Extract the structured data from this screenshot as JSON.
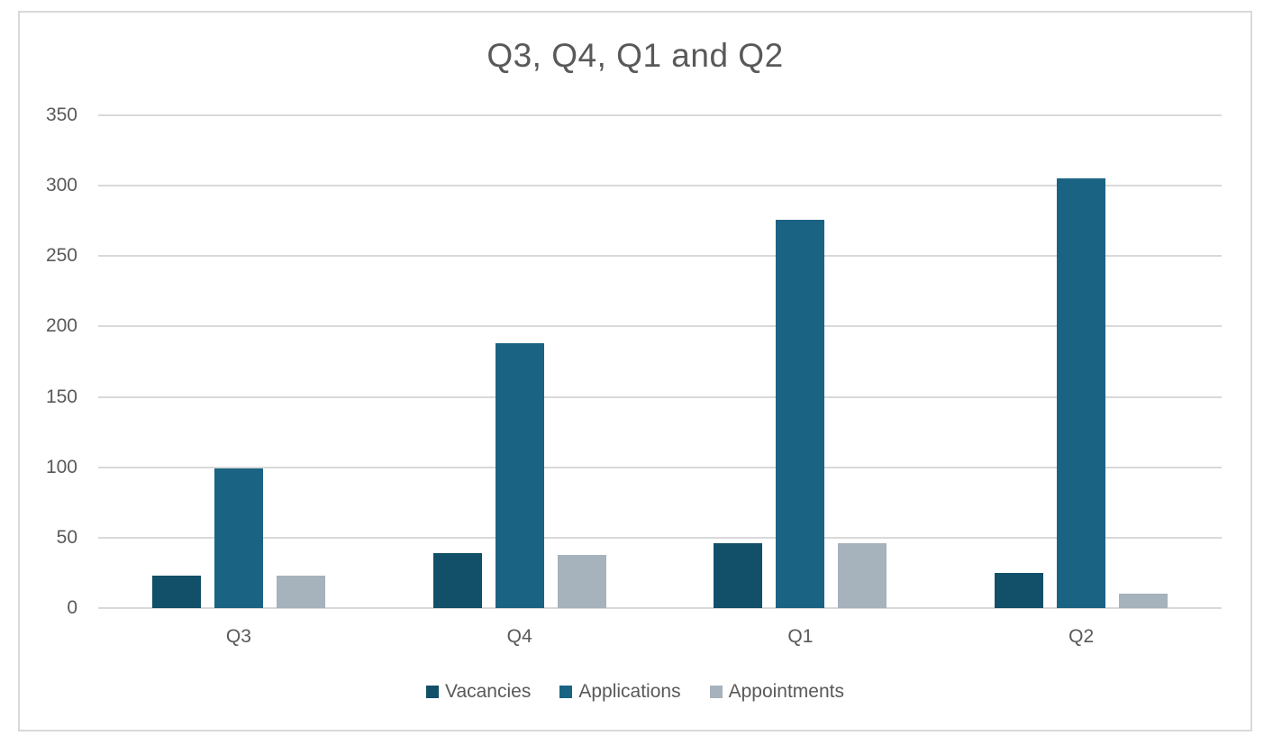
{
  "chart_data": {
    "type": "bar",
    "title": "Q3, Q4, Q1 and Q2",
    "categories": [
      "Q3",
      "Q4",
      "Q1",
      "Q2"
    ],
    "series": [
      {
        "name": "Vacancies",
        "color": "#124F68",
        "values": [
          23,
          39,
          46,
          25
        ]
      },
      {
        "name": "Applications",
        "color": "#1B6383",
        "values": [
          99,
          188,
          276,
          305
        ]
      },
      {
        "name": "Appointments",
        "color": "#A6B2BC",
        "values": [
          23,
          38,
          46,
          10
        ]
      }
    ],
    "xlabel": "",
    "ylabel": "",
    "ylim": [
      0,
      350
    ],
    "yticks": [
      0,
      50,
      100,
      150,
      200,
      250,
      300,
      350
    ],
    "grid": true,
    "legend_position": "bottom",
    "legend": [
      "Vacancies",
      "Applications",
      "Appointments"
    ]
  },
  "style": {
    "text_color": "#595959",
    "grid_color": "#D9D9D9",
    "background": "#FFFFFF"
  }
}
